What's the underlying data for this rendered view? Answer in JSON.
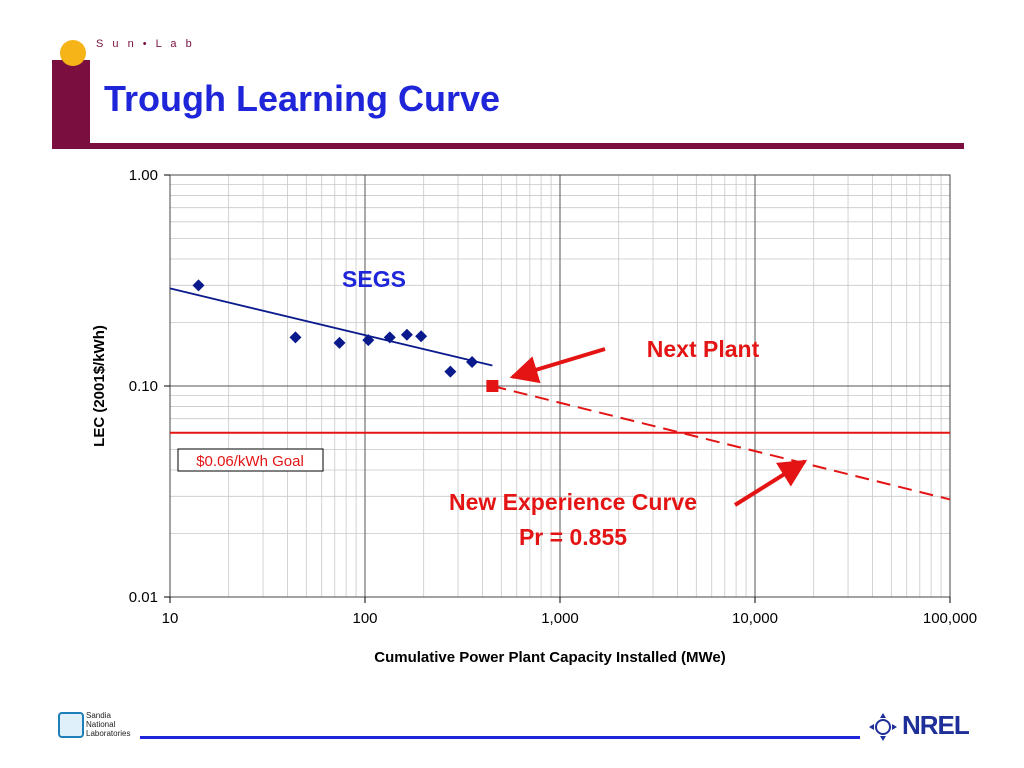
{
  "header": {
    "lab_label": "S u n • L a b",
    "title": "Trough Learning Curve"
  },
  "footer": {
    "sandia_lines": [
      "Sandia",
      "National",
      "Laboratories"
    ],
    "nrel": "NREL"
  },
  "colors": {
    "brand": "#7a0f3f",
    "title_blue": "#1f25d8",
    "series_blue": "#0a1a8c",
    "annotation_red": "#e41414",
    "goal_red": "#e41414"
  },
  "chart_data": {
    "type": "scatter",
    "xlabel": "Cumulative Power Plant Capacity Installed (MWe)",
    "ylabel": "LEC (2001$/kWh)",
    "x_scale": "log",
    "y_scale": "log",
    "xlim": [
      10,
      100000
    ],
    "ylim": [
      0.01,
      1.0
    ],
    "x_ticks": [
      10,
      100,
      1000,
      10000,
      100000
    ],
    "x_tick_labels": [
      "10",
      "100",
      "1,000",
      "10,000",
      "100,000"
    ],
    "y_ticks": [
      0.01,
      0.1,
      1.0
    ],
    "y_tick_labels": [
      "0.01",
      "0.10",
      "1.00"
    ],
    "grid": true,
    "series": [
      {
        "name": "SEGS",
        "marker": "diamond",
        "color": "#0a1a8c",
        "x": [
          14,
          44,
          74,
          104,
          134,
          164,
          194,
          274,
          354
        ],
        "y": [
          0.3,
          0.17,
          0.16,
          0.165,
          0.17,
          0.175,
          0.172,
          0.117,
          0.13
        ]
      },
      {
        "name": "Next Plant",
        "marker": "square",
        "color": "#e41414",
        "x": [
          450
        ],
        "y": [
          0.1
        ]
      }
    ],
    "trendlines": [
      {
        "series": "SEGS",
        "style": "solid",
        "color": "#0a1a8c",
        "x": [
          10,
          450
        ],
        "y": [
          0.29,
          0.125
        ]
      },
      {
        "series": "New Experience Curve",
        "style": "dashed",
        "color": "#e41414",
        "x": [
          450,
          100000
        ],
        "y": [
          0.1,
          0.029
        ]
      }
    ],
    "reference_lines": [
      {
        "label": "$0.06/kWh Goal",
        "y": 0.06,
        "color": "#e41414"
      }
    ],
    "annotations": [
      {
        "text": "SEGS",
        "color": "#1f25d8"
      },
      {
        "text": "Next Plant",
        "color": "#e41414",
        "arrow_to": [
          450,
          0.1
        ]
      },
      {
        "text": "New Experience Curve",
        "color": "#e41414",
        "arrow_to": [
          18000,
          0.043
        ]
      },
      {
        "text": "Pr = 0.855",
        "color": "#e41414"
      }
    ]
  }
}
